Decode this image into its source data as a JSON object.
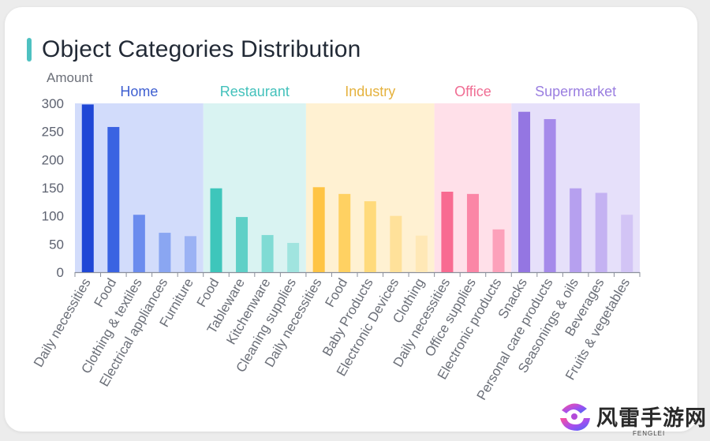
{
  "page": {
    "title": "Object Categories Distribution"
  },
  "watermark": {
    "text": "风雷手游网",
    "subtext": "FENGLEI"
  },
  "chart_data": {
    "type": "bar",
    "title": "Object Categories Distribution",
    "ylabel": "Amount",
    "xlabel": "",
    "ylim": [
      0,
      300
    ],
    "yticks": [
      0,
      50,
      100,
      150,
      200,
      250,
      300
    ],
    "grid": false,
    "groups": [
      {
        "name": "Home",
        "label_color": "#3e5fd1",
        "band_color": "#d2dcfb",
        "categories": [
          "Daily necessities",
          "Food",
          "Clothing & textiles",
          "Electrical appliances",
          "Furniture"
        ],
        "values": [
          298,
          258,
          102,
          70,
          64
        ],
        "colors": [
          "#1f47d6",
          "#3a63e2",
          "#6b8cee",
          "#8aa6f2",
          "#9bb2f4"
        ]
      },
      {
        "name": "Restaurant",
        "label_color": "#42c1bb",
        "band_color": "#d9f3f2",
        "categories": [
          "Food",
          "Tableware",
          "Kitchenware",
          "Cleaning supplies"
        ],
        "values": [
          149,
          98,
          66,
          52
        ],
        "colors": [
          "#3ec6bb",
          "#5fd0c7",
          "#80dbd4",
          "#a0e4df"
        ]
      },
      {
        "name": "Industry",
        "label_color": "#e5b23e",
        "band_color": "#fff1d2",
        "categories": [
          "Daily necessities",
          "Food",
          "Baby Products",
          "Electronic Devices",
          "Clothing"
        ],
        "values": [
          151,
          139,
          126,
          100,
          65
        ],
        "colors": [
          "#ffc444",
          "#ffd162",
          "#ffda7b",
          "#ffe19a",
          "#ffe8b6"
        ]
      },
      {
        "name": "Office",
        "label_color": "#f06d93",
        "band_color": "#ffe0e9",
        "categories": [
          "Daily necessities",
          "Office supplies",
          "Electronic products"
        ],
        "values": [
          143,
          139,
          76
        ],
        "colors": [
          "#f86b91",
          "#fb86a6",
          "#fca1ba"
        ]
      },
      {
        "name": "Supermarket",
        "label_color": "#9a7ee0",
        "band_color": "#e6e0fa",
        "categories": [
          "Snacks",
          "Personal care products",
          "Seasonings & oils",
          "Beverages",
          "Fruits & vegetables"
        ],
        "values": [
          285,
          272,
          149,
          141,
          102
        ],
        "colors": [
          "#9476e2",
          "#a58aea",
          "#b6a0ef",
          "#c4b2f2",
          "#d2c4f5"
        ]
      }
    ]
  }
}
